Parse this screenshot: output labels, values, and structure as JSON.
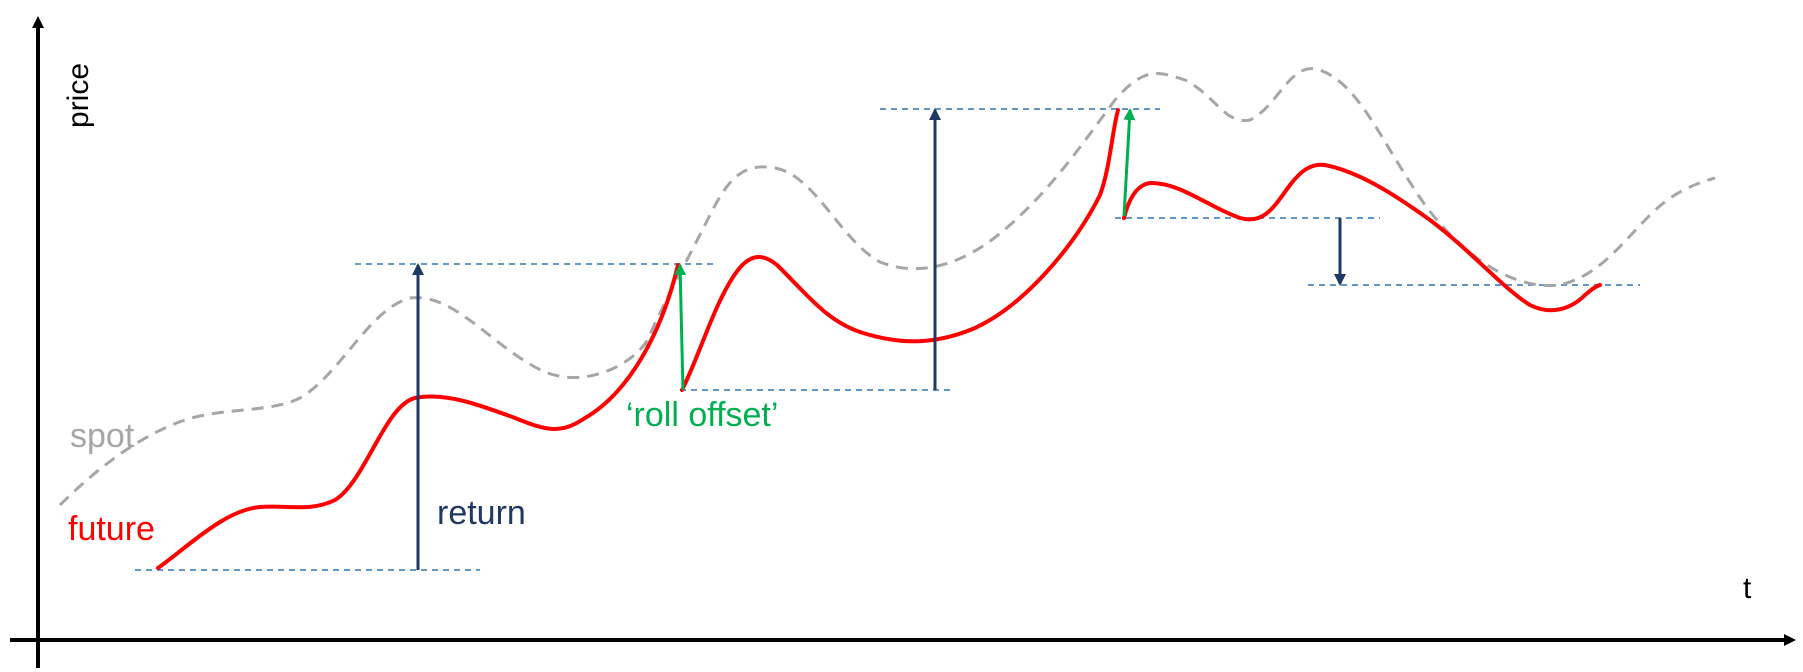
{
  "axes": {
    "y_label": "price",
    "x_label": "t"
  },
  "labels": {
    "spot": "spot",
    "future": "future",
    "return": "return",
    "roll_offset": "‘roll offset’"
  },
  "colors": {
    "axis": "#000000",
    "spot": "#a6a6a6",
    "future": "#ff0000",
    "return_arrow": "#1f3864",
    "roll_arrow": "#00b050",
    "reference_line": "#2e75b6",
    "return_text": "#1f3864",
    "roll_text": "#00b050",
    "spot_text": "#a6a6a6",
    "future_text": "#ff0000"
  }
}
